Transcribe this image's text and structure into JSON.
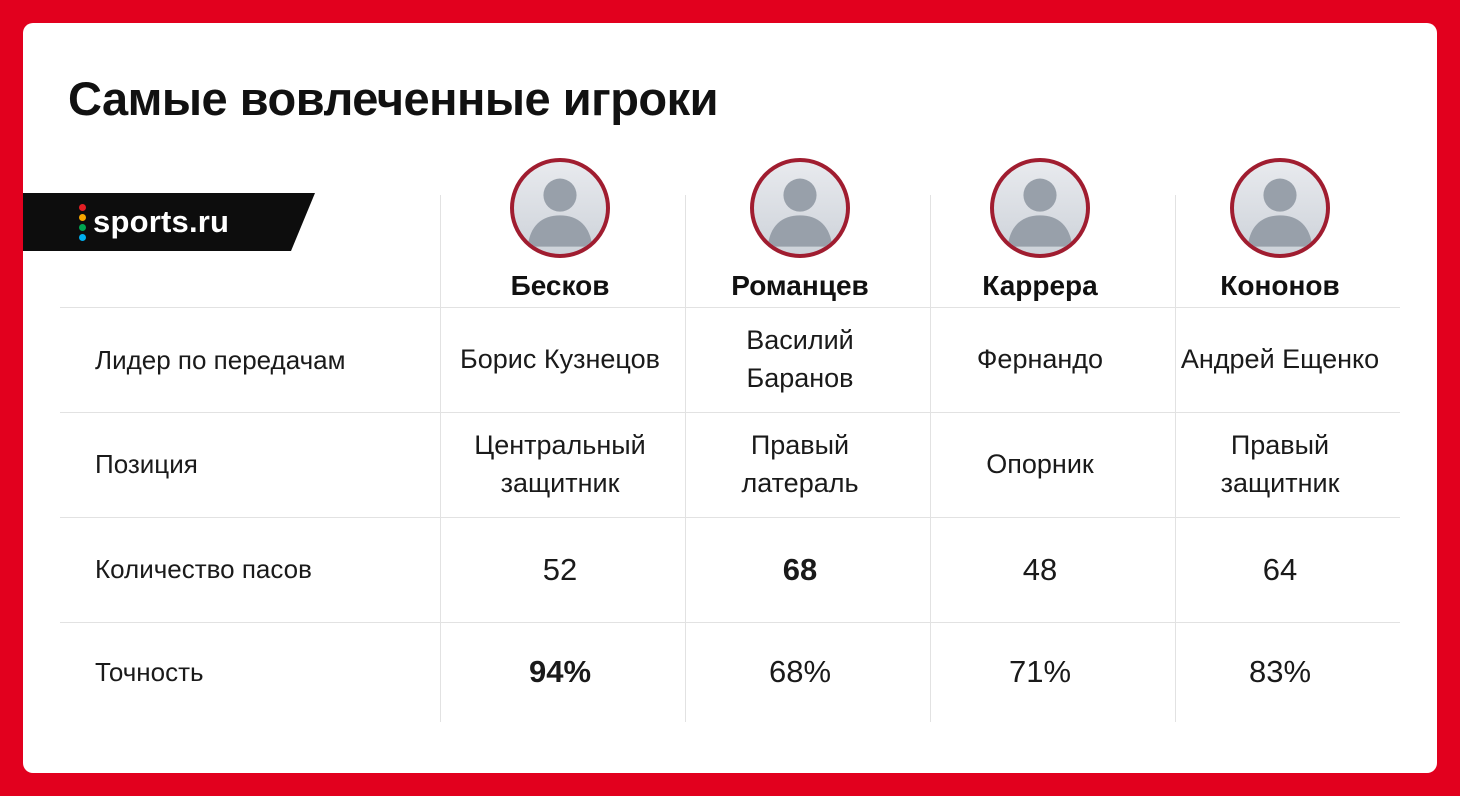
{
  "title": "Самые вовлеченные игроки",
  "brand": {
    "logo_text": "sports.ru",
    "logo_dot_colors": [
      "#e31e24",
      "#f7a600",
      "#00a651",
      "#00aeef"
    ]
  },
  "colors": {
    "frame": "#e2001e",
    "avatar_ring": "#a01d30",
    "divider": "#e2e2e2",
    "text": "#1a1a1a"
  },
  "table": {
    "row_labels": [
      "Лидер по передачам",
      "Позиция",
      "Количество пасов",
      "Точность"
    ],
    "columns": [
      {
        "coach": "Бесков",
        "leader": "Борис Кузнецов",
        "position": "Центральный защитник",
        "passes": "52",
        "accuracy": "94%"
      },
      {
        "coach": "Романцев",
        "leader": "Василий Баранов",
        "position": "Правый латераль",
        "passes": "68",
        "accuracy": "68%"
      },
      {
        "coach": "Каррера",
        "leader": "Фернандо",
        "position": "Опорник",
        "passes": "48",
        "accuracy": "71%"
      },
      {
        "coach": "Кононов",
        "leader": "Андрей Ещенко",
        "position": "Правый защитник",
        "passes": "64",
        "accuracy": "83%"
      }
    ]
  }
}
